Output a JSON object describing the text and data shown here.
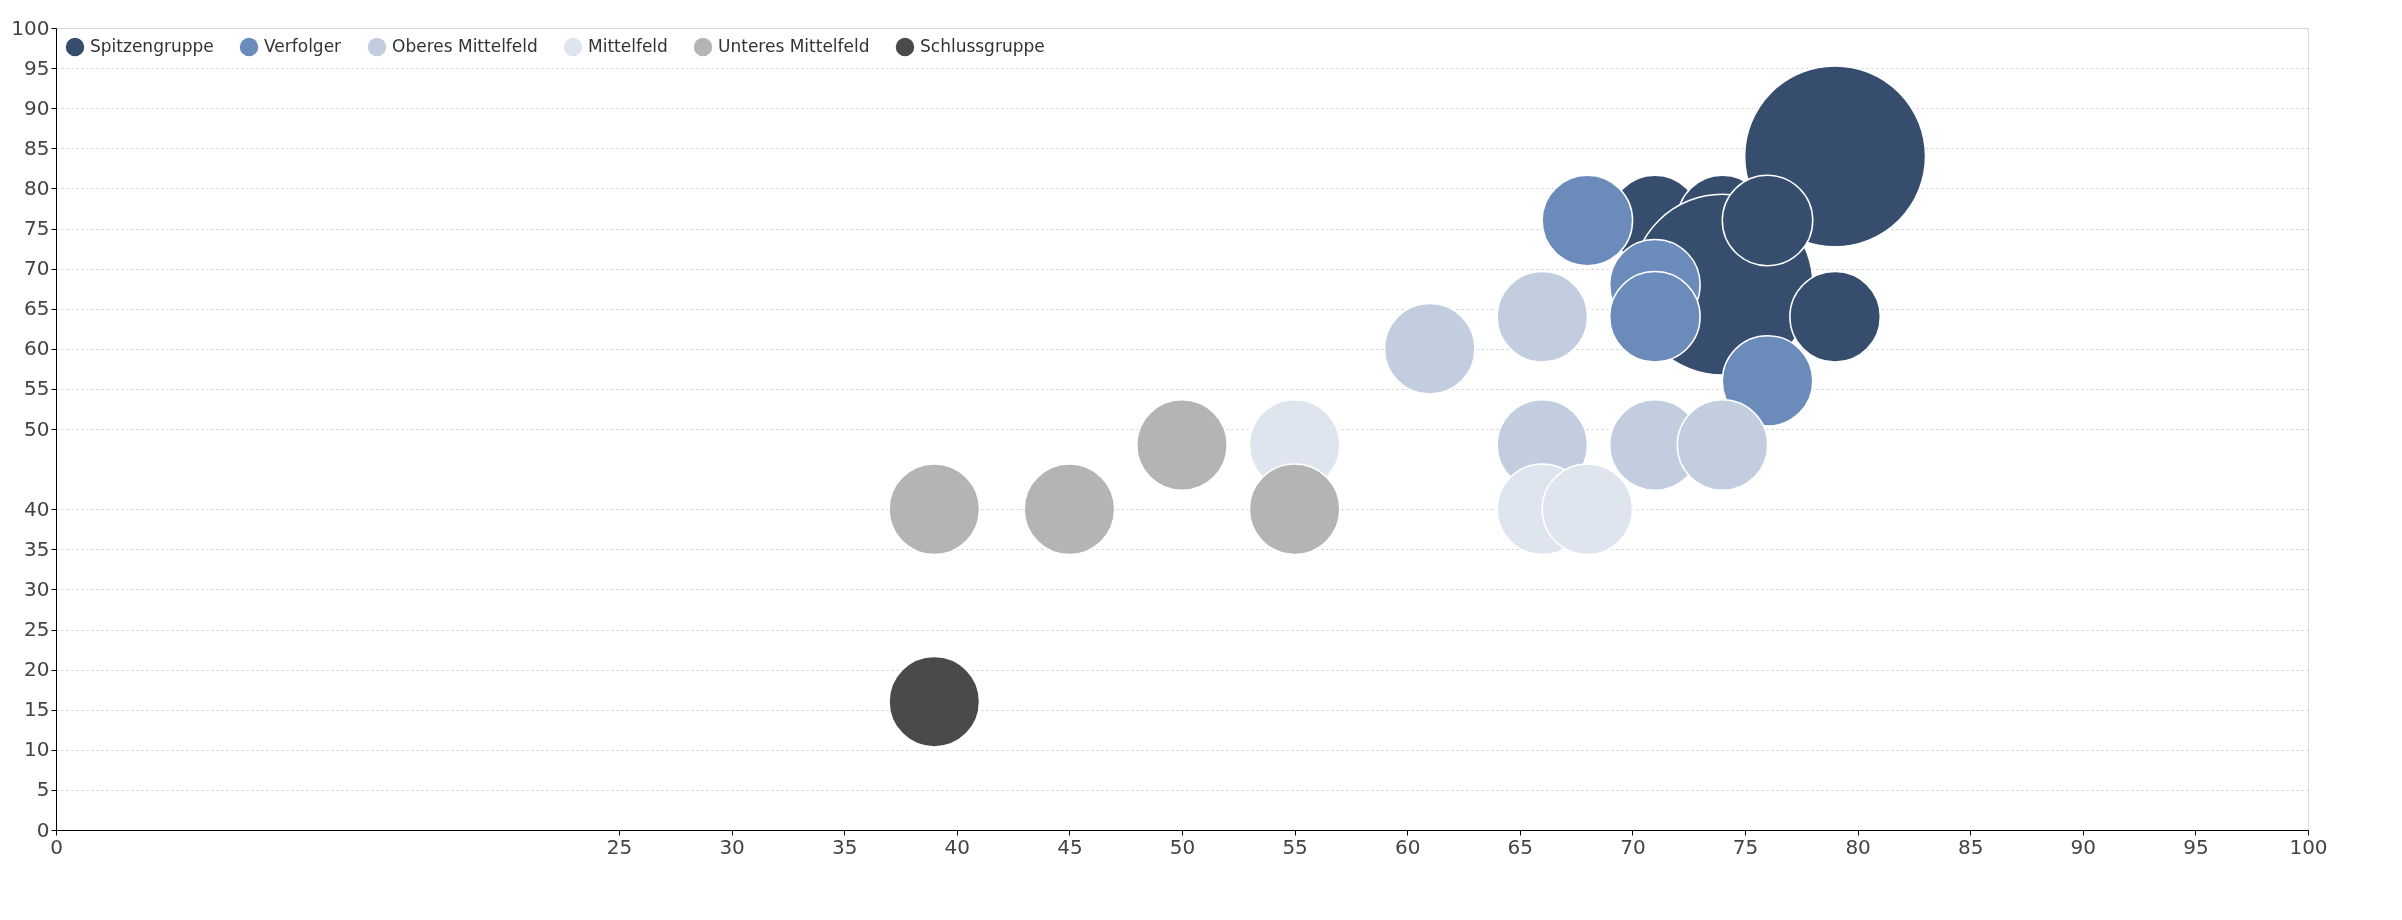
{
  "chart_data": {
    "type": "bubble",
    "series": [
      {
        "name": "Spitzengruppe",
        "color": "#364d6e",
        "x": [
          71,
          74,
          74,
          79,
          79,
          76
        ],
        "values": [
          76,
          76,
          68,
          84,
          64,
          76
        ],
        "sizes": [
          0.25,
          0.25,
          1,
          1,
          0.25,
          0.25
        ]
      },
      {
        "name": "Verfolger",
        "color": "#6b8cba",
        "x": [
          68,
          71,
          71,
          76
        ],
        "values": [
          76,
          68,
          64,
          56
        ],
        "sizes": [
          0.25,
          0.25,
          0.25,
          0.25
        ]
      },
      {
        "name": "Oberes Mittelfeld",
        "color": "#c3cde0",
        "x": [
          61,
          66,
          66,
          71,
          74
        ],
        "values": [
          60,
          64,
          48,
          48,
          48
        ],
        "sizes": [
          0.25,
          0.25,
          0.25,
          0.25,
          0.25
        ]
      },
      {
        "name": "Mittelfeld",
        "color": "#dfe5ef",
        "x": [
          55,
          66,
          68
        ],
        "values": [
          48,
          40,
          40
        ],
        "sizes": [
          0.25,
          0.25,
          0.25
        ]
      },
      {
        "name": "Unteres Mittelfeld",
        "color": "#b4b4b4",
        "x": [
          39,
          45,
          50,
          55
        ],
        "values": [
          40,
          40,
          48,
          40
        ],
        "sizes": [
          0.25,
          0.25,
          0.25,
          0.25
        ]
      },
      {
        "name": "Schlussgruppe",
        "color": "#4a4a4a",
        "x": [
          39
        ],
        "values": [
          16
        ],
        "sizes": [
          0.25
        ]
      }
    ],
    "xlim": [
      0,
      100
    ],
    "xticks": [
      0,
      25,
      30,
      35,
      40,
      45,
      50,
      55,
      60,
      65,
      70,
      75,
      80,
      85,
      90,
      95,
      100
    ],
    "ylim": [
      0,
      100
    ],
    "yticks": [
      0,
      5,
      10,
      15,
      20,
      25,
      30,
      35,
      40,
      50,
      55,
      60,
      65,
      70,
      75,
      80,
      85,
      90,
      95,
      100
    ],
    "grid": "y",
    "legend": "top left",
    "marker": "circle"
  }
}
